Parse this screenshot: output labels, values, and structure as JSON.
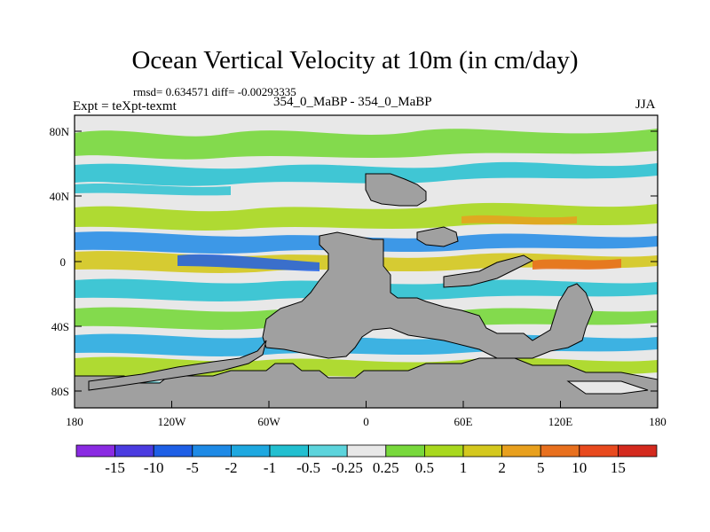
{
  "title": "Ocean Vertical Velocity at 10m (in cm/day)",
  "stats": "rmsd= 0.634571 diff= -0.00293335",
  "subtitle": "354_0_MaBP - 354_0_MaBP",
  "expt_label": "Expt = teXpt-texmt",
  "season": "JJA",
  "y_ticks": [
    "80N",
    "40N",
    "0",
    "40S",
    "80S"
  ],
  "x_ticks": [
    "180",
    "120W",
    "60W",
    "0",
    "60E",
    "120E",
    "180"
  ],
  "colorbar": {
    "labels": [
      "-15",
      "-10",
      "-5",
      "-2",
      "-1",
      "-0.5",
      "-0.25",
      "0.25",
      "0.5",
      "1",
      "2",
      "5",
      "10",
      "15"
    ],
    "colors": [
      "#8a2be2",
      "#4b3be0",
      "#1e5fe6",
      "#1e8ae6",
      "#1ea8e0",
      "#22bfd0",
      "#5cd4dc",
      "#e8e8e8",
      "#78d83c",
      "#a8d81e",
      "#d4c81e",
      "#e8a01e",
      "#e8701e",
      "#e84a1e",
      "#d42a1e"
    ]
  },
  "land_color": "#a0a0a0"
}
